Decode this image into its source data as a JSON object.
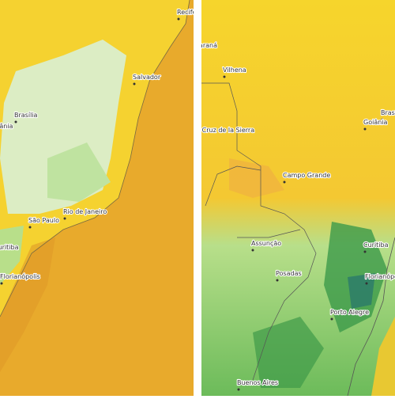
{
  "left_panel": {
    "cities": [
      "Recife",
      "Salvador",
      "Brasília",
      "Goiânia",
      "São Paulo",
      "Rio de Janeiro",
      "Curitiba",
      "Florianópolis"
    ]
  },
  "right_panel": {
    "cities": [
      "Ji-Paraná",
      "Vilhena",
      "Santa Cruz de la Sierra",
      "Brasília",
      "Goiânia",
      "Campo Grande",
      "Assunção",
      "Posadas",
      "Curitiba",
      "Florianópolis",
      "Porto Alegre",
      "Buenos Aires"
    ]
  }
}
